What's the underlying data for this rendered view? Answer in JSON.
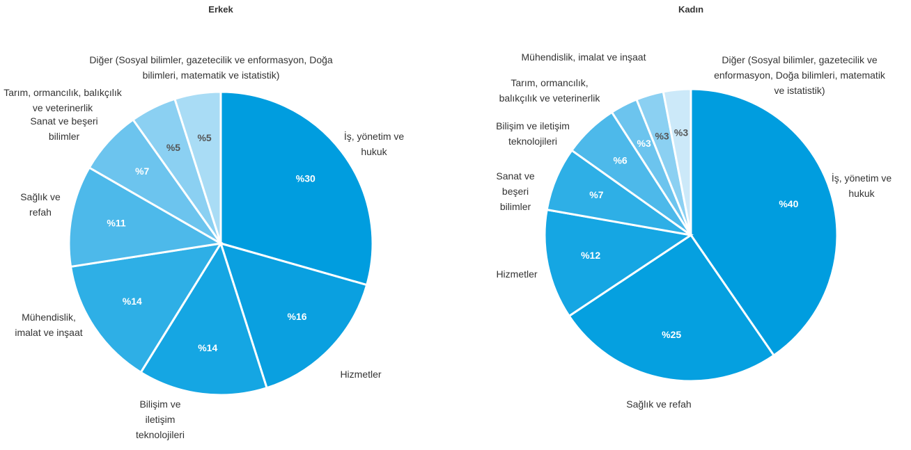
{
  "chart_data": [
    {
      "type": "pie",
      "title": "Erkek",
      "categories": [
        "İş, yönetim ve hukuk",
        "Hizmetler",
        "Bilişim ve iletişim teknolojileri",
        "Mühendislik, imalat ve inşaat",
        "Sağlık ve refah",
        "Sanat ve beşeri bilimler",
        "Tarım, ormancılık, balıkçılık ve veterinerlik",
        "Diğer (Sosyal bilimler, gazetecilik ve enformasyon, Doğa bilimleri, matematik ve istatistik)"
      ],
      "values": [
        30,
        16,
        14,
        14,
        11,
        7,
        5,
        5
      ],
      "value_labels": [
        "%30",
        "%16",
        "%14",
        "%14",
        "%11",
        "%7",
        "%5",
        "%5"
      ],
      "colors": [
        "#009ddf",
        "#0aa0e0",
        "#15a6e3",
        "#2eafe6",
        "#4db9ea",
        "#6cc4ee",
        "#8bd0f2",
        "#a9dcf5"
      ]
    },
    {
      "type": "pie",
      "title": "Kadın",
      "categories": [
        "İş, yönetim ve hukuk",
        "Sağlık ve refah",
        "Hizmetler",
        "Sanat ve beşeri bilimler",
        "Bilişim ve iletişim teknolojileri",
        "Tarım, ormancılık, balıkçılık ve veterinerlik",
        "Mühendislik, imalat ve inşaat",
        "Diğer (Sosyal bilimler, gazetecilik ve enformasyon, Doğa bilimleri, matematik ve istatistik)"
      ],
      "values": [
        40,
        25,
        12,
        7,
        6,
        3,
        3,
        3
      ],
      "value_labels": [
        "%40",
        "%25",
        "%12",
        "%7",
        "%6",
        "%3",
        "%3",
        "%3"
      ],
      "colors": [
        "#009ddf",
        "#05a0e0",
        "#15a6e3",
        "#2eafe6",
        "#4db9ea",
        "#6cc4ee",
        "#8bd0f2",
        "#cce9f9"
      ]
    }
  ]
}
